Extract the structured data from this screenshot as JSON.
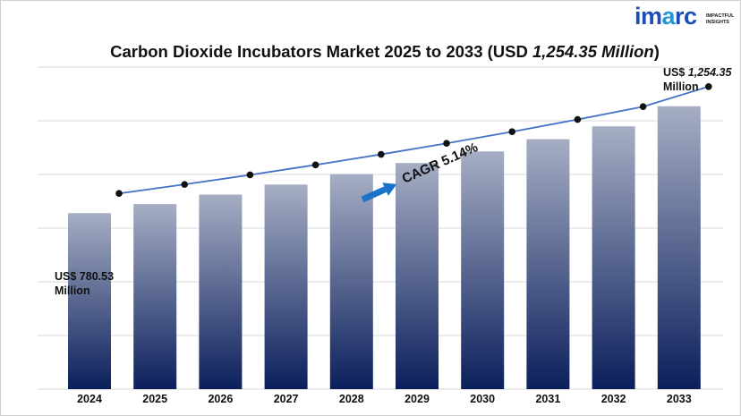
{
  "brand": {
    "word": "imarc",
    "word_left": "im",
    "word_accent": "a",
    "word_right": "rc",
    "tagline": [
      "IMPACTFUL",
      "INSIGHTS"
    ]
  },
  "title": {
    "main": "Carbon Dioxide Incubators Market 2025 to 2033 (USD ",
    "value": "1,254.35 Million",
    "close": ")"
  },
  "labels": {
    "start": {
      "line1": "US$ 780.53",
      "line2": "Million"
    },
    "end": {
      "prefix": "US$ ",
      "value": "1,254.35",
      "line2": "Million"
    }
  },
  "cagr": "CAGR 5.14%",
  "colors": {
    "bar_top": "#a6aec4",
    "bar_bottom": "#0b1f5c",
    "line": "#4472c4",
    "arrow": "#1a73c9",
    "grid": "#d9d9d9"
  },
  "chart_data": {
    "type": "bar",
    "title": "Carbon Dioxide Incubators Market 2025 to 2033 (USD 1,254.35 Million)",
    "xlabel": "",
    "ylabel": "",
    "ylim": [
      0,
      1428
    ],
    "grid": true,
    "categories": [
      "2024",
      "2025",
      "2026",
      "2027",
      "2028",
      "2029",
      "2030",
      "2031",
      "2032",
      "2033"
    ],
    "values": [
      780.53,
      820.6,
      862.8,
      907.1,
      953.7,
      1002.7,
      1054.2,
      1108.4,
      1165.3,
      1254.35
    ],
    "annotations": [
      "US$ 780.53 Million",
      "US$ 1,254.35 Million",
      "CAGR 5.14%"
    ]
  }
}
